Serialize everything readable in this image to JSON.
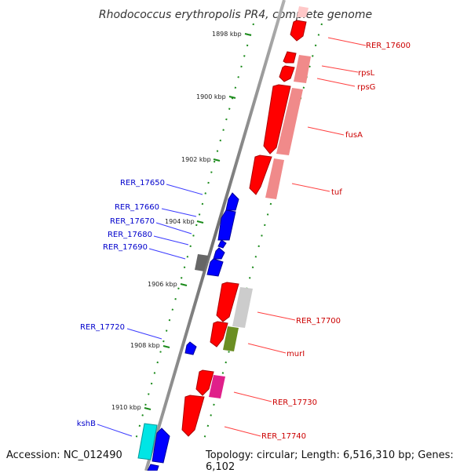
{
  "title": "Rhodococcus erythropolis PR4, complete genome",
  "footer": {
    "accession": "Accession: NC_012490",
    "topology": "Topology: circular; Length: 6,516,310 bp; Genes: 6,102"
  },
  "ticks": [
    "1898 kbp",
    "1900 kbp",
    "1902 kbp",
    "1904 kbp",
    "1906 kbp",
    "1908 kbp",
    "1910 kbp"
  ],
  "genes_right": [
    "RER_17600",
    "rpsL",
    "rpsG",
    "fusA",
    "tuf",
    "RER_17700",
    "murI",
    "RER_17730",
    "RER_17740"
  ],
  "genes_left": [
    "RER_17650",
    "RER_17660",
    "RER_17670",
    "RER_17680",
    "RER_17690",
    "RER_17720",
    "kshB"
  ],
  "colors": {
    "forward_strand": "#ff0000",
    "reverse_strand": "#0000ff",
    "right_label": "#cc0000",
    "left_label": "#0000cc",
    "axis": "#808080",
    "tick": "#008000"
  }
}
